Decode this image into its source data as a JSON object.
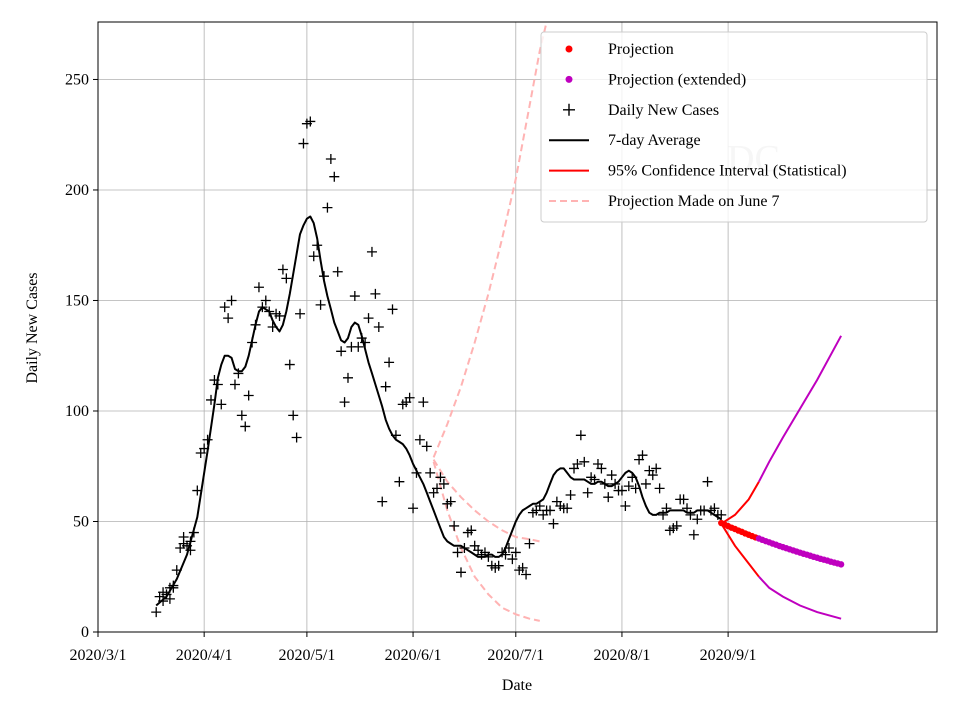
{
  "chart_data": {
    "type": "line",
    "title": "",
    "xlabel": "Date",
    "ylabel": "Daily New Cases",
    "watermark": "DC",
    "grid": true,
    "legend_position": "top-right",
    "xlim_days": [
      0,
      245
    ],
    "ylim": [
      0,
      276
    ],
    "x_ticks": [
      {
        "day": 0,
        "label": "2020/3/1"
      },
      {
        "day": 31,
        "label": "2020/4/1"
      },
      {
        "day": 61,
        "label": "2020/5/1"
      },
      {
        "day": 92,
        "label": "2020/6/1"
      },
      {
        "day": 122,
        "label": "2020/7/1"
      },
      {
        "day": 153,
        "label": "2020/8/1"
      },
      {
        "day": 184,
        "label": "2020/9/1"
      }
    ],
    "y_ticks": [
      0,
      50,
      100,
      150,
      200,
      250
    ],
    "colors": {
      "projection": "#ff0000",
      "projection_extended": "#bf00bf",
      "daily": "#000000",
      "average": "#000000",
      "ci": "#ff0000",
      "june7": "#ffb3b3"
    },
    "legend": [
      {
        "label": "Projection",
        "kind": "dot",
        "series": "projection"
      },
      {
        "label": "Projection (extended)",
        "kind": "dot",
        "series": "projection_extended"
      },
      {
        "label": "Daily New Cases",
        "kind": "plus",
        "series": "daily"
      },
      {
        "label": "7-day Average",
        "kind": "line",
        "series": "average"
      },
      {
        "label": "95% Confidence Interval (Statistical)",
        "kind": "line",
        "series": "ci"
      },
      {
        "label": "Projection Made on June 7",
        "kind": "dash",
        "series": "june7"
      }
    ],
    "daily_new_cases": [
      [
        17,
        9
      ],
      [
        18,
        16
      ],
      [
        19,
        14
      ],
      [
        19,
        18
      ],
      [
        20,
        17
      ],
      [
        21,
        15
      ],
      [
        21,
        20
      ],
      [
        22,
        21
      ],
      [
        22,
        20
      ],
      [
        23,
        28
      ],
      [
        24,
        38
      ],
      [
        25,
        40
      ],
      [
        25,
        43
      ],
      [
        26,
        39
      ],
      [
        27,
        37
      ],
      [
        27,
        41
      ],
      [
        28,
        45
      ],
      [
        29,
        64
      ],
      [
        30,
        81
      ],
      [
        31,
        83
      ],
      [
        32,
        87
      ],
      [
        33,
        105
      ],
      [
        34,
        114
      ],
      [
        35,
        112
      ],
      [
        36,
        103
      ],
      [
        37,
        147
      ],
      [
        38,
        142
      ],
      [
        39,
        150
      ],
      [
        40,
        112
      ],
      [
        41,
        117
      ],
      [
        42,
        98
      ],
      [
        43,
        93
      ],
      [
        44,
        107
      ],
      [
        45,
        131
      ],
      [
        46,
        139
      ],
      [
        47,
        156
      ],
      [
        48,
        147
      ],
      [
        49,
        150
      ],
      [
        50,
        145
      ],
      [
        51,
        138
      ],
      [
        52,
        144
      ],
      [
        53,
        143
      ],
      [
        54,
        164
      ],
      [
        55,
        160
      ],
      [
        56,
        121
      ],
      [
        57,
        98
      ],
      [
        58,
        88
      ],
      [
        59,
        144
      ],
      [
        60,
        221
      ],
      [
        61,
        230
      ],
      [
        62,
        231
      ],
      [
        63,
        170
      ],
      [
        64,
        175
      ],
      [
        65,
        148
      ],
      [
        66,
        161
      ],
      [
        67,
        192
      ],
      [
        68,
        214
      ],
      [
        69,
        206
      ],
      [
        70,
        163
      ],
      [
        71,
        127
      ],
      [
        72,
        104
      ],
      [
        73,
        115
      ],
      [
        74,
        129
      ],
      [
        75,
        152
      ],
      [
        76,
        129
      ],
      [
        77,
        133
      ],
      [
        78,
        131
      ],
      [
        79,
        142
      ],
      [
        80,
        172
      ],
      [
        81,
        153
      ],
      [
        82,
        138
      ],
      [
        83,
        59
      ],
      [
        84,
        111
      ],
      [
        85,
        122
      ],
      [
        86,
        146
      ],
      [
        87,
        89
      ],
      [
        88,
        68
      ],
      [
        89,
        103
      ],
      [
        90,
        104
      ],
      [
        91,
        106
      ],
      [
        92,
        56
      ],
      [
        93,
        72
      ],
      [
        94,
        87
      ],
      [
        95,
        104
      ],
      [
        96,
        84
      ],
      [
        97,
        72
      ],
      [
        98,
        63
      ],
      [
        99,
        65
      ],
      [
        100,
        70
      ],
      [
        101,
        67
      ],
      [
        102,
        58
      ],
      [
        103,
        59
      ],
      [
        104,
        48
      ],
      [
        105,
        36
      ],
      [
        106,
        27
      ],
      [
        107,
        38
      ],
      [
        108,
        45
      ],
      [
        109,
        46
      ],
      [
        110,
        39
      ],
      [
        111,
        37
      ],
      [
        112,
        35
      ],
      [
        113,
        36
      ],
      [
        114,
        34
      ],
      [
        115,
        30
      ],
      [
        116,
        29
      ],
      [
        117,
        30
      ],
      [
        118,
        36
      ],
      [
        119,
        35
      ],
      [
        120,
        38
      ],
      [
        121,
        33
      ],
      [
        122,
        36
      ],
      [
        123,
        28
      ],
      [
        124,
        29
      ],
      [
        125,
        26
      ],
      [
        126,
        40
      ],
      [
        127,
        54
      ],
      [
        128,
        55
      ],
      [
        129,
        57
      ],
      [
        130,
        53
      ],
      [
        131,
        55
      ],
      [
        132,
        55
      ],
      [
        133,
        49
      ],
      [
        134,
        59
      ],
      [
        135,
        57
      ],
      [
        136,
        56
      ],
      [
        137,
        56
      ],
      [
        138,
        62
      ],
      [
        139,
        74
      ],
      [
        140,
        76
      ],
      [
        141,
        89
      ],
      [
        142,
        77
      ],
      [
        143,
        63
      ],
      [
        144,
        70
      ],
      [
        145,
        69
      ],
      [
        146,
        76
      ],
      [
        147,
        74
      ],
      [
        148,
        67
      ],
      [
        149,
        61
      ],
      [
        150,
        71
      ],
      [
        151,
        67
      ],
      [
        152,
        64
      ],
      [
        153,
        64
      ],
      [
        154,
        57
      ],
      [
        155,
        66
      ],
      [
        156,
        70
      ],
      [
        157,
        65
      ],
      [
        158,
        78
      ],
      [
        159,
        80
      ],
      [
        160,
        67
      ],
      [
        161,
        73
      ],
      [
        162,
        71
      ],
      [
        163,
        74
      ],
      [
        164,
        65
      ],
      [
        165,
        53
      ],
      [
        166,
        56
      ],
      [
        167,
        46
      ],
      [
        168,
        47
      ],
      [
        169,
        48
      ],
      [
        170,
        60
      ],
      [
        171,
        60
      ],
      [
        172,
        56
      ],
      [
        173,
        53
      ],
      [
        174,
        44
      ],
      [
        175,
        51
      ],
      [
        176,
        55
      ],
      [
        177,
        55
      ],
      [
        178,
        68
      ],
      [
        179,
        55
      ],
      [
        180,
        56
      ],
      [
        181,
        53
      ],
      [
        182,
        53
      ]
    ],
    "seven_day_average": [
      [
        17,
        12
      ],
      [
        20,
        16
      ],
      [
        23,
        24
      ],
      [
        26,
        35
      ],
      [
        29,
        52
      ],
      [
        32,
        82
      ],
      [
        34,
        103
      ],
      [
        35,
        115
      ],
      [
        36,
        121
      ],
      [
        37,
        125
      ],
      [
        38,
        125
      ],
      [
        39,
        124
      ],
      [
        40,
        119
      ],
      [
        41,
        118
      ],
      [
        42,
        118
      ],
      [
        43,
        120
      ],
      [
        44,
        125
      ],
      [
        45,
        132
      ],
      [
        46,
        139
      ],
      [
        47,
        145
      ],
      [
        48,
        147
      ],
      [
        49,
        146
      ],
      [
        50,
        145
      ],
      [
        51,
        141
      ],
      [
        52,
        138
      ],
      [
        53,
        136
      ],
      [
        54,
        139
      ],
      [
        55,
        145
      ],
      [
        56,
        153
      ],
      [
        57,
        162
      ],
      [
        58,
        171
      ],
      [
        59,
        180
      ],
      [
        60,
        184
      ],
      [
        61,
        187
      ],
      [
        62,
        188
      ],
      [
        63,
        185
      ],
      [
        64,
        178
      ],
      [
        65,
        168
      ],
      [
        66,
        159
      ],
      [
        67,
        152
      ],
      [
        68,
        146
      ],
      [
        69,
        140
      ],
      [
        70,
        136
      ],
      [
        71,
        132
      ],
      [
        72,
        131
      ],
      [
        73,
        133
      ],
      [
        74,
        138
      ],
      [
        75,
        140
      ],
      [
        76,
        139
      ],
      [
        77,
        134
      ],
      [
        78,
        128
      ],
      [
        79,
        122
      ],
      [
        80,
        117
      ],
      [
        81,
        112
      ],
      [
        82,
        107
      ],
      [
        83,
        102
      ],
      [
        84,
        96
      ],
      [
        85,
        92
      ],
      [
        86,
        89
      ],
      [
        87,
        87
      ],
      [
        88,
        86
      ],
      [
        89,
        85
      ],
      [
        90,
        83
      ],
      [
        91,
        80
      ],
      [
        92,
        76
      ],
      [
        93,
        73
      ],
      [
        94,
        70
      ],
      [
        95,
        67
      ],
      [
        96,
        63
      ],
      [
        97,
        59
      ],
      [
        98,
        55
      ],
      [
        99,
        51
      ],
      [
        100,
        47
      ],
      [
        101,
        43
      ],
      [
        102,
        41
      ],
      [
        103,
        40
      ],
      [
        104,
        39
      ],
      [
        105,
        39
      ],
      [
        106,
        39
      ],
      [
        107,
        38
      ],
      [
        108,
        37
      ],
      [
        109,
        36
      ],
      [
        110,
        35
      ],
      [
        111,
        34
      ],
      [
        112,
        34
      ],
      [
        113,
        34
      ],
      [
        114,
        35
      ],
      [
        115,
        35
      ],
      [
        116,
        34
      ],
      [
        117,
        34
      ],
      [
        118,
        35
      ],
      [
        119,
        38
      ],
      [
        120,
        42
      ],
      [
        121,
        46
      ],
      [
        122,
        50
      ],
      [
        123,
        53
      ],
      [
        124,
        55
      ],
      [
        125,
        56
      ],
      [
        126,
        57
      ],
      [
        127,
        58
      ],
      [
        128,
        58
      ],
      [
        129,
        59
      ],
      [
        130,
        60
      ],
      [
        131,
        63
      ],
      [
        132,
        67
      ],
      [
        133,
        71
      ],
      [
        134,
        73
      ],
      [
        135,
        74
      ],
      [
        136,
        74
      ],
      [
        137,
        72
      ],
      [
        138,
        70
      ],
      [
        139,
        69
      ],
      [
        140,
        69
      ],
      [
        141,
        69
      ],
      [
        142,
        69
      ],
      [
        143,
        68
      ],
      [
        144,
        67
      ],
      [
        145,
        67
      ],
      [
        146,
        68
      ],
      [
        147,
        68
      ],
      [
        148,
        67
      ],
      [
        149,
        66
      ],
      [
        150,
        66
      ],
      [
        151,
        67
      ],
      [
        152,
        68
      ],
      [
        153,
        70
      ],
      [
        154,
        72
      ],
      [
        155,
        73
      ],
      [
        156,
        72
      ],
      [
        157,
        70
      ],
      [
        158,
        66
      ],
      [
        159,
        61
      ],
      [
        160,
        57
      ],
      [
        161,
        54
      ],
      [
        162,
        53
      ],
      [
        163,
        53
      ],
      [
        164,
        54
      ],
      [
        165,
        54
      ],
      [
        166,
        54
      ],
      [
        167,
        55
      ],
      [
        168,
        55
      ],
      [
        169,
        55
      ],
      [
        170,
        55
      ],
      [
        171,
        55
      ],
      [
        172,
        54
      ],
      [
        173,
        54
      ],
      [
        174,
        54
      ],
      [
        175,
        55
      ],
      [
        176,
        55
      ],
      [
        177,
        55
      ],
      [
        178,
        55
      ],
      [
        179,
        54
      ],
      [
        180,
        53
      ],
      [
        181,
        52
      ],
      [
        182,
        51
      ]
    ],
    "projection": [
      [
        182,
        49.3
      ],
      [
        183,
        48.6
      ],
      [
        184,
        47.9
      ],
      [
        185,
        47.2
      ],
      [
        186,
        46.6
      ],
      [
        187,
        45.9
      ],
      [
        188,
        45.3
      ],
      [
        189,
        44.6
      ],
      [
        190,
        44.0
      ],
      [
        191,
        43.4
      ],
      [
        192,
        42.8
      ]
    ],
    "projection_extended": [
      [
        193,
        42.3
      ],
      [
        194,
        41.7
      ],
      [
        195,
        41.1
      ],
      [
        196,
        40.6
      ],
      [
        197,
        40.0
      ],
      [
        198,
        39.5
      ],
      [
        199,
        38.9
      ],
      [
        200,
        38.4
      ],
      [
        201,
        37.9
      ],
      [
        202,
        37.4
      ],
      [
        203,
        36.9
      ],
      [
        204,
        36.4
      ],
      [
        205,
        35.9
      ],
      [
        206,
        35.4
      ],
      [
        207,
        35.0
      ],
      [
        208,
        34.5
      ],
      [
        209,
        34.0
      ],
      [
        210,
        33.6
      ],
      [
        211,
        33.1
      ],
      [
        212,
        32.7
      ],
      [
        213,
        32.3
      ],
      [
        214,
        31.8
      ],
      [
        215,
        31.4
      ],
      [
        216,
        31.0
      ],
      [
        217,
        30.6
      ]
    ],
    "ci_upper": [
      [
        182,
        49
      ],
      [
        186,
        53
      ],
      [
        190,
        60
      ],
      [
        193,
        68
      ],
      [
        196,
        77
      ],
      [
        200,
        88
      ],
      [
        205,
        101
      ],
      [
        210,
        114
      ],
      [
        217,
        134
      ]
    ],
    "ci_lower": [
      [
        182,
        49
      ],
      [
        186,
        39
      ],
      [
        190,
        31
      ],
      [
        193,
        25
      ],
      [
        196,
        20
      ],
      [
        200,
        16
      ],
      [
        205,
        12
      ],
      [
        210,
        9
      ],
      [
        217,
        6
      ]
    ],
    "ci_split_day": 193,
    "june7_upper": [
      [
        98,
        79
      ],
      [
        102,
        94
      ],
      [
        106,
        111
      ],
      [
        110,
        131
      ],
      [
        114,
        153
      ],
      [
        118,
        178
      ],
      [
        122,
        205
      ],
      [
        126,
        238
      ],
      [
        129,
        263
      ],
      [
        131,
        276
      ]
    ],
    "june7_mid": [
      [
        98,
        78
      ],
      [
        102,
        68
      ],
      [
        106,
        61
      ],
      [
        110,
        55
      ],
      [
        114,
        50
      ],
      [
        118,
        46
      ],
      [
        122,
        43
      ],
      [
        126,
        42
      ],
      [
        129,
        41
      ]
    ],
    "june7_lower": [
      [
        98,
        77
      ],
      [
        102,
        55
      ],
      [
        106,
        38
      ],
      [
        110,
        25
      ],
      [
        114,
        17
      ],
      [
        118,
        11
      ],
      [
        122,
        8
      ],
      [
        126,
        6
      ],
      [
        129,
        5
      ]
    ]
  }
}
